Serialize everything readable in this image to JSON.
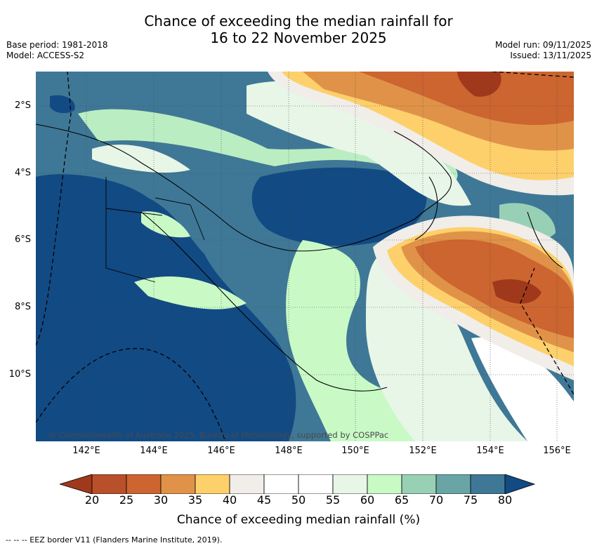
{
  "title": {
    "line1": "Chance of exceeding the median rainfall for",
    "line2": "16 to 22 November 2025"
  },
  "meta": {
    "base_period": "Base period: 1981-2018",
    "model": "Model: ACCESS-S2",
    "model_run": "Model run: 09/11/2025",
    "issued": "Issued: 13/11/2025"
  },
  "map": {
    "lat_labels": [
      "2°S",
      "4°S",
      "6°S",
      "8°S",
      "10°S"
    ],
    "lon_labels": [
      "142°E",
      "144°E",
      "146°E",
      "148°E",
      "150°E",
      "152°E",
      "154°E",
      "156°E"
    ],
    "copyright": "© Commonwealth of Australia 2025, Bureau of Meteorology, supported by COSPPac"
  },
  "legend": {
    "ticks": [
      "20",
      "25",
      "30",
      "35",
      "40",
      "45",
      "50",
      "55",
      "60",
      "65",
      "70",
      "75",
      "80"
    ],
    "colors": [
      "#a0391b",
      "#b8502a",
      "#cc6530",
      "#e09348",
      "#fdd06c",
      "#f1ede9",
      "#ffffff",
      "#ffffff",
      "#e8f6e8",
      "#c9fac6",
      "#98d0b6",
      "#6aa5a6",
      "#3f7896",
      "#124a84"
    ],
    "title": "Chance of exceeding median rainfall (%)"
  },
  "footer": {
    "eez_note": "--  --  -- EEZ border V11 (Flanders Marine Institute, 2019)."
  }
}
